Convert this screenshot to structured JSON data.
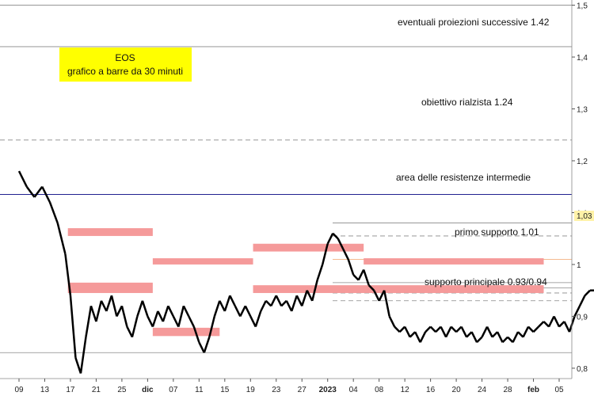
{
  "chart_data": {
    "type": "bar",
    "title": "EOS",
    "subtitle": "grafico a barre da 30 minuti",
    "ylim": [
      0.78,
      1.51
    ],
    "y_ticks": [
      "0,8",
      "0,9",
      "1",
      "1,1",
      "1,2",
      "1,3",
      "1,4",
      "1,5"
    ],
    "y_tick_values": [
      0.8,
      0.9,
      1.0,
      1.1,
      1.2,
      1.3,
      1.4,
      1.5
    ],
    "x_ticks": [
      "09",
      "13",
      "17",
      "21",
      "25",
      "dic",
      "07",
      "11",
      "15",
      "19",
      "23",
      "27",
      "2023",
      "04",
      "08",
      "12",
      "16",
      "20",
      "24",
      "28",
      "feb",
      "05"
    ],
    "bold_x_ticks": [
      "dic",
      "2023",
      "feb"
    ],
    "last_price_label": "1,03",
    "last_price": 1.03,
    "price_series": [
      [
        0,
        1.18
      ],
      [
        0.3,
        1.15
      ],
      [
        0.6,
        1.13
      ],
      [
        0.9,
        1.15
      ],
      [
        1.2,
        1.12
      ],
      [
        1.5,
        1.08
      ],
      [
        1.8,
        1.02
      ],
      [
        2.0,
        0.94
      ],
      [
        2.2,
        0.82
      ],
      [
        2.4,
        0.79
      ],
      [
        2.6,
        0.86
      ],
      [
        2.8,
        0.92
      ],
      [
        3.0,
        0.89
      ],
      [
        3.2,
        0.93
      ],
      [
        3.4,
        0.91
      ],
      [
        3.6,
        0.94
      ],
      [
        3.8,
        0.9
      ],
      [
        4.0,
        0.92
      ],
      [
        4.2,
        0.88
      ],
      [
        4.4,
        0.86
      ],
      [
        4.6,
        0.9
      ],
      [
        4.8,
        0.93
      ],
      [
        5.0,
        0.9
      ],
      [
        5.2,
        0.88
      ],
      [
        5.4,
        0.91
      ],
      [
        5.6,
        0.89
      ],
      [
        5.8,
        0.92
      ],
      [
        6.0,
        0.9
      ],
      [
        6.2,
        0.88
      ],
      [
        6.4,
        0.92
      ],
      [
        6.6,
        0.9
      ],
      [
        6.8,
        0.88
      ],
      [
        7.0,
        0.85
      ],
      [
        7.2,
        0.83
      ],
      [
        7.4,
        0.86
      ],
      [
        7.6,
        0.9
      ],
      [
        7.8,
        0.93
      ],
      [
        8.0,
        0.91
      ],
      [
        8.2,
        0.94
      ],
      [
        8.4,
        0.92
      ],
      [
        8.6,
        0.9
      ],
      [
        8.8,
        0.92
      ],
      [
        9.0,
        0.9
      ],
      [
        9.2,
        0.88
      ],
      [
        9.4,
        0.91
      ],
      [
        9.6,
        0.93
      ],
      [
        9.8,
        0.92
      ],
      [
        10.0,
        0.94
      ],
      [
        10.2,
        0.92
      ],
      [
        10.4,
        0.93
      ],
      [
        10.6,
        0.91
      ],
      [
        10.8,
        0.94
      ],
      [
        11.0,
        0.92
      ],
      [
        11.2,
        0.95
      ],
      [
        11.4,
        0.93
      ],
      [
        11.6,
        0.97
      ],
      [
        11.8,
        1.0
      ],
      [
        12.0,
        1.04
      ],
      [
        12.2,
        1.06
      ],
      [
        12.4,
        1.05
      ],
      [
        12.6,
        1.03
      ],
      [
        12.8,
        1.01
      ],
      [
        13.0,
        0.98
      ],
      [
        13.2,
        0.97
      ],
      [
        13.4,
        0.99
      ],
      [
        13.6,
        0.96
      ],
      [
        13.8,
        0.95
      ],
      [
        14.0,
        0.93
      ],
      [
        14.2,
        0.95
      ],
      [
        14.4,
        0.9
      ],
      [
        14.6,
        0.88
      ],
      [
        14.8,
        0.87
      ],
      [
        15.0,
        0.88
      ],
      [
        15.2,
        0.86
      ],
      [
        15.4,
        0.87
      ],
      [
        15.6,
        0.85
      ],
      [
        15.8,
        0.87
      ],
      [
        16.0,
        0.88
      ],
      [
        16.2,
        0.87
      ],
      [
        16.4,
        0.88
      ],
      [
        16.6,
        0.86
      ],
      [
        16.8,
        0.88
      ],
      [
        17.0,
        0.87
      ],
      [
        17.2,
        0.88
      ],
      [
        17.4,
        0.86
      ],
      [
        17.6,
        0.87
      ],
      [
        17.8,
        0.85
      ],
      [
        18.0,
        0.86
      ],
      [
        18.2,
        0.88
      ],
      [
        18.4,
        0.86
      ],
      [
        18.6,
        0.87
      ],
      [
        18.8,
        0.85
      ],
      [
        19.0,
        0.86
      ],
      [
        19.2,
        0.85
      ],
      [
        19.4,
        0.87
      ],
      [
        19.6,
        0.86
      ],
      [
        19.8,
        0.88
      ],
      [
        20.0,
        0.87
      ],
      [
        20.2,
        0.88
      ],
      [
        20.4,
        0.89
      ],
      [
        20.6,
        0.88
      ],
      [
        20.8,
        0.9
      ],
      [
        21.0,
        0.88
      ],
      [
        21.2,
        0.89
      ],
      [
        21.4,
        0.87
      ],
      [
        21.6,
        0.9
      ],
      [
        21.8,
        0.92
      ],
      [
        22.0,
        0.94
      ],
      [
        22.2,
        0.95
      ],
      [
        22.4,
        0.95
      ],
      [
        22.6,
        0.96
      ],
      [
        22.8,
        0.95
      ],
      [
        23.0,
        0.97
      ],
      [
        23.2,
        1.0
      ],
      [
        23.4,
        1.03
      ],
      [
        23.6,
        1.06
      ],
      [
        23.8,
        1.08
      ],
      [
        24.0,
        1.05
      ],
      [
        24.2,
        1.07
      ],
      [
        24.4,
        1.04
      ],
      [
        24.6,
        1.05
      ],
      [
        24.8,
        1.02
      ],
      [
        25.0,
        1.04
      ],
      [
        25.2,
        1.03
      ],
      [
        25.4,
        1.05
      ],
      [
        25.6,
        1.03
      ]
    ],
    "resistance_zones": [
      {
        "x": [
          1.9,
          5.2
        ],
        "y": [
          1.055,
          1.07
        ]
      },
      {
        "x": [
          5.2,
          9.1
        ],
        "y": [
          1.0,
          1.012
        ]
      },
      {
        "x": [
          9.1,
          13.4
        ],
        "y": [
          1.025,
          1.04
        ]
      },
      {
        "x": [
          13.4,
          20.4
        ],
        "y": [
          1.0,
          1.012
        ]
      },
      {
        "x": [
          1.9,
          5.2
        ],
        "y": [
          0.945,
          0.965
        ]
      },
      {
        "x": [
          9.1,
          20.4
        ],
        "y": [
          0.945,
          0.96
        ]
      },
      {
        "x": [
          5.2,
          7.8
        ],
        "y": [
          0.862,
          0.878
        ]
      }
    ],
    "support_zones": [
      {
        "x": [
          24.4,
          31
        ],
        "y": [
          1.014,
          1.022
        ]
      },
      {
        "x": [
          24.4,
          31
        ],
        "y": [
          0.93,
          0.935
        ]
      },
      {
        "x": [
          24.4,
          31
        ],
        "y": [
          0.935,
          0.942
        ]
      }
    ],
    "annotations": {
      "proiezioni": "eventuali proiezioni successive 1.42",
      "obiettivo": "obiettivo rialzista 1.24",
      "resistenze": "area delle resistenze intermedie",
      "primo_supporto": "primo supporto 1.01",
      "supporto_principale": "supporto principale 0.93/0.94"
    },
    "levels": [
      1.42,
      1.24,
      1.135,
      1.08,
      1.055,
      1.01,
      0.965,
      0.955,
      0.945,
      0.93
    ],
    "colors": {
      "resistance": "#f59a9a",
      "support": "#b8edb8",
      "price": "#000000",
      "title_box": "#ffff00",
      "last_price_box": "#fff2a8"
    }
  }
}
